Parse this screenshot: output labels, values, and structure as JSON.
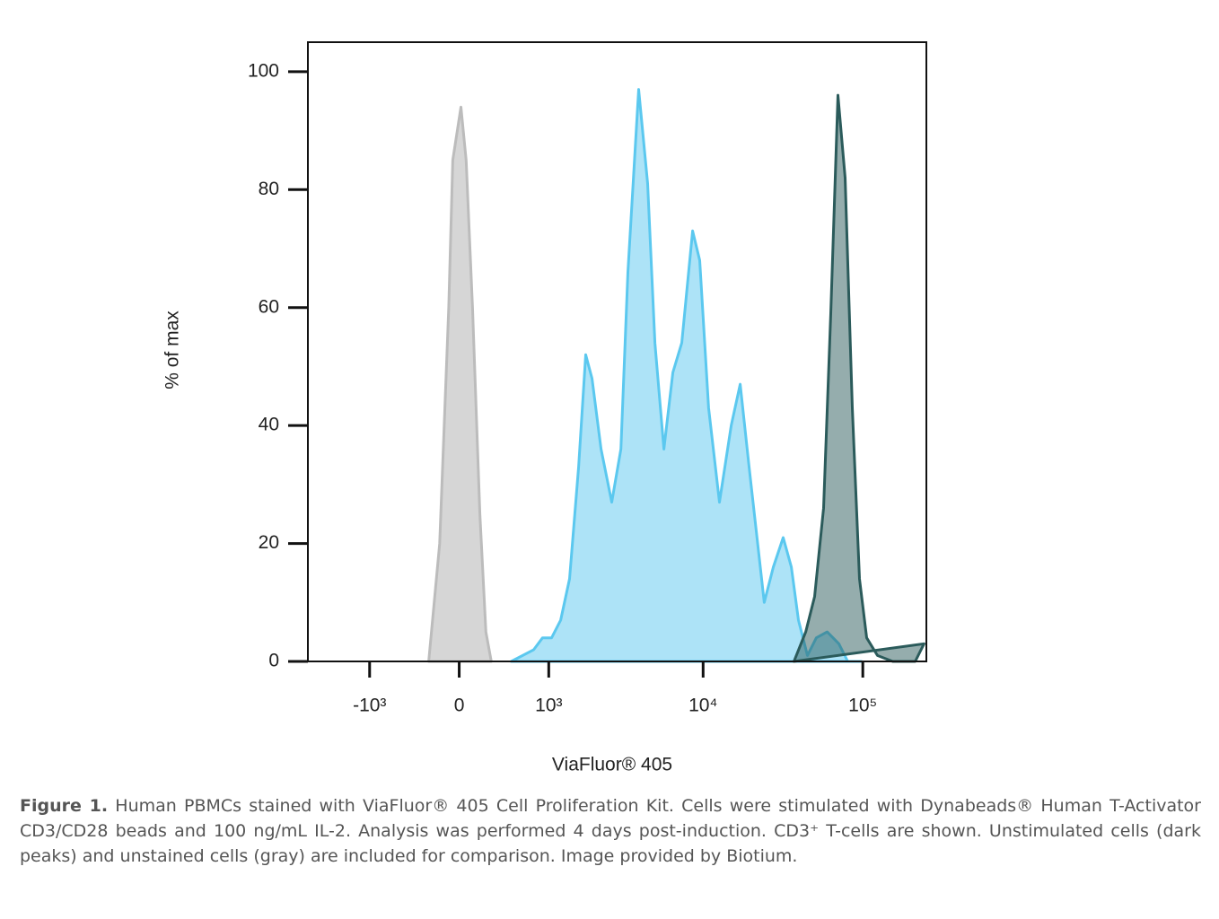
{
  "chart_data": {
    "type": "area",
    "xlabel": "ViaFluor® 405",
    "ylabel": "% of max",
    "xscale": "biexponential",
    "xlim": [
      -2600,
      250000
    ],
    "xticks": [
      {
        "value": -1000,
        "label": "-10³"
      },
      0,
      {
        "value": 1000,
        "label": "10³"
      },
      {
        "value": 10000,
        "label": "10⁴"
      },
      {
        "value": 100000,
        "label": "10⁵"
      }
    ],
    "ylim": [
      0,
      105
    ],
    "yticks": [
      0,
      20,
      40,
      60,
      80,
      100
    ],
    "series": [
      {
        "color": "#d6d6d6",
        "x": [
          -270,
          -170,
          -90,
          -55,
          15,
          60,
          115,
          180,
          235,
          285
        ],
        "values": [
          0,
          20,
          60,
          85,
          94,
          85,
          60,
          25,
          5,
          0
        ]
      },
      {
        "color": "#5bc8ef",
        "x": [
          489,
          770,
          900,
          1048,
          1216,
          1400,
          1611,
          1794,
          1975,
          2260,
          2650,
          3030,
          3360,
          3930,
          4480,
          4980,
          5670,
          6460,
          7350,
          8590,
          9520,
          10830,
          12660,
          15000,
          17070,
          19400,
          24170,
          27530,
          31730,
          35690,
          39570,
          45000,
          51200,
          59840,
          70800,
          80500,
          97900
        ],
        "values": [
          0,
          2,
          4,
          4,
          7,
          14,
          33,
          52,
          48,
          36,
          27,
          36,
          66,
          97,
          81,
          54,
          36,
          49,
          54,
          73,
          68,
          43,
          27,
          40,
          47,
          33,
          10,
          16,
          21,
          16,
          7,
          1,
          4,
          5,
          3,
          0,
          0
        ]
      },
      {
        "color": "#2b5b5b",
        "x": [
          37100,
          43900,
          49900,
          56800,
          63000,
          69900,
          77500,
          86000,
          95400,
          105800,
          123500,
          153900,
          213000,
          241600
        ],
        "values": [
          0,
          5,
          11,
          26,
          59,
          96,
          82,
          43,
          14,
          4,
          1,
          0,
          0,
          3
        ]
      }
    ]
  },
  "caption": {
    "label": "Figure 1.",
    "text": "Human PBMCs stained with ViaFluor® 405 Cell Proliferation Kit. Cells were stimulated with Dynabeads® Human T-Activator CD3/CD28 beads and 100 ng/mL IL-2. Analysis was performed 4 days post-induction. CD3⁺ T-cells are shown. Unstimulated cells (dark peaks) and unstained cells (gray) are included for comparison. Image provided by Biotium."
  }
}
